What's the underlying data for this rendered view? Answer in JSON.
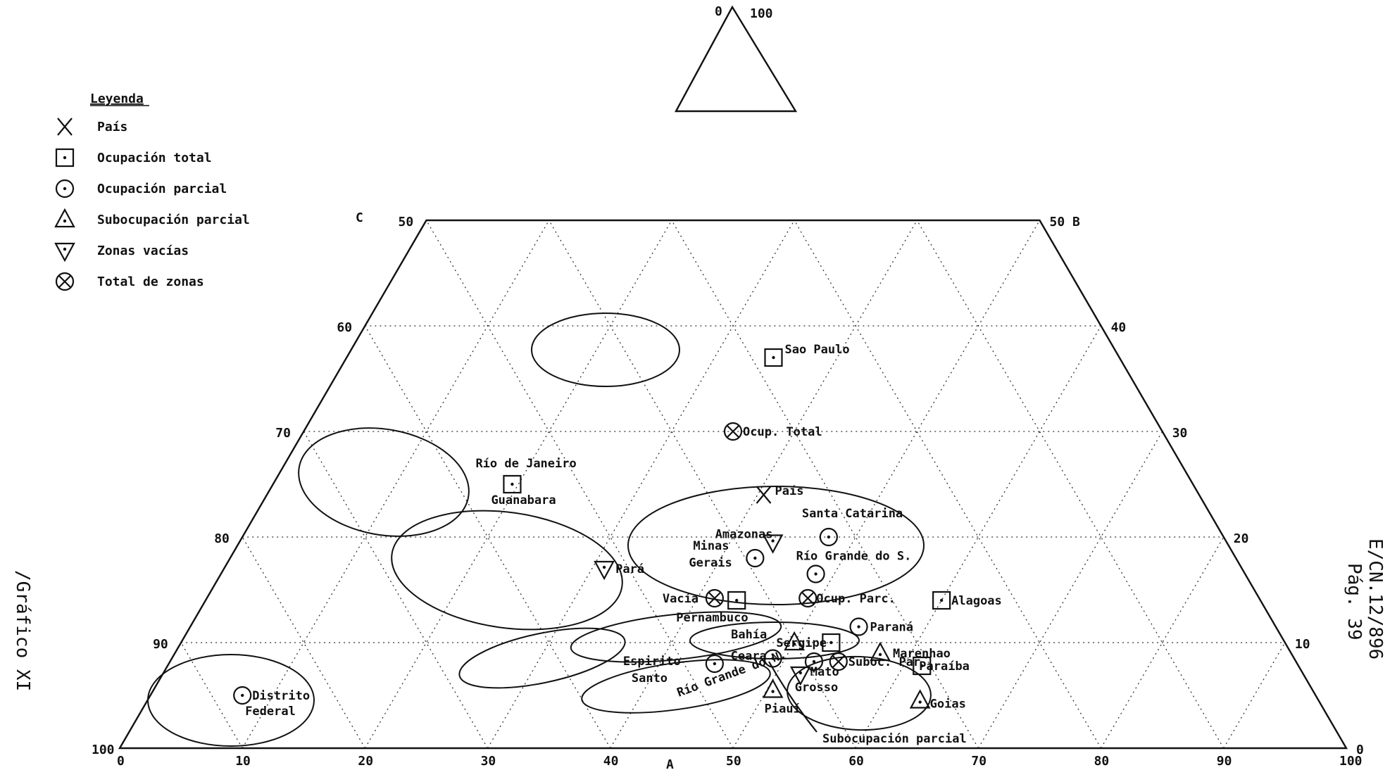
{
  "chart_data": {
    "type": "scatter",
    "variant": "ternary",
    "page_ref": "E/CN.12/896",
    "page_num": "Pág. 39",
    "figure_tag": "/Gráfico XI",
    "axes": {
      "A": {
        "label": "A",
        "ticks": [
          "0",
          "10",
          "20",
          "30",
          "40",
          "50",
          "60",
          "70",
          "80",
          "90",
          "100"
        ]
      },
      "B": {
        "label": "B",
        "ticks": [
          "0",
          "10",
          "20",
          "30",
          "40",
          "50 B"
        ]
      },
      "C": {
        "label": "C",
        "ticks": [
          "50",
          "60",
          "70",
          "80",
          "90",
          "100"
        ]
      },
      "inset": [
        "0",
        "100"
      ]
    },
    "legend": {
      "title": "Leyenda",
      "items": [
        {
          "symbol": "x-cross",
          "label": "País"
        },
        {
          "symbol": "square-dot",
          "label": "Ocupación total"
        },
        {
          "symbol": "circle-dot",
          "label": "Ocupación parcial"
        },
        {
          "symbol": "triangle-up-dot",
          "label": "Subocupación parcial"
        },
        {
          "symbol": "triangle-down-dot",
          "label": "Zonas vacías"
        },
        {
          "symbol": "circle-x",
          "label": "Total de zonas"
        }
      ]
    },
    "points": [
      {
        "label": "Sao Paulo",
        "symbol": "square-dot",
        "A": 34.8,
        "C": 63.0
      },
      {
        "label": "Ocup. Total",
        "symbol": "circle-x",
        "A": 35.0,
        "C": 70.0
      },
      {
        "label": "Río de Janeiro",
        "label2": "Guanabara",
        "symbol": "square-dot",
        "A": 19.5,
        "C": 75.0
      },
      {
        "label": "País",
        "symbol": "x-cross",
        "A": 40.5,
        "C": 76.0
      },
      {
        "label": "Santa Catarina",
        "symbol": "circle-dot",
        "A": 47.8,
        "C": 80.0
      },
      {
        "label": "Amazonas",
        "symbol": "triangle-down-dot",
        "A": 43.5,
        "C": 80.5
      },
      {
        "label": "Minas",
        "label2": "Gerais",
        "symbol": "circle-dot",
        "A": 42.8,
        "C": 82.0
      },
      {
        "label": "Pará",
        "symbol": "triangle-down-dot",
        "A": 31.0,
        "C": 83.0
      },
      {
        "label": "Río Grande do S.",
        "symbol": "circle-dot",
        "A": 48.5,
        "C": 83.5
      },
      {
        "label": "Vacía",
        "symbol": "circle-x",
        "A": 41.4,
        "C": 85.8
      },
      {
        "label": "Pernambuco",
        "symbol": "square-dot",
        "A": 43.3,
        "C": 86.0
      },
      {
        "label": "Ocup. Parc.",
        "symbol": "circle-x",
        "A": 49.0,
        "C": 85.8
      },
      {
        "label": "Alagoas",
        "symbol": "square-dot",
        "A": 60.0,
        "C": 86.0
      },
      {
        "label": "Paraná",
        "symbol": "circle-dot",
        "A": 54.5,
        "C": 88.5
      },
      {
        "label": "Bahía",
        "symbol": "triangle-up-dot",
        "A": 50.0,
        "C": 90.0
      },
      {
        "label": "Sergipe",
        "symbol": "square-dot",
        "A": 53.0,
        "C": 90.0
      },
      {
        "label": "Marenhao",
        "symbol": "triangle-up-dot",
        "A": 57.5,
        "C": 91.0
      },
      {
        "label": "Ceara",
        "symbol": "circle-dot",
        "A": 49.0,
        "C": 91.5
      },
      {
        "label": "Espirito",
        "label2": "Santo",
        "symbol": "circle-dot",
        "A": 44.5,
        "C": 92.0
      },
      {
        "label": "Río Grande do N.",
        "symbol": "circle-dot",
        "A": 52.5,
        "C": 91.8
      },
      {
        "label": "Suboc. Par",
        "symbol": "circle-x",
        "A": 54.5,
        "C": 91.8
      },
      {
        "label": "Paraíba",
        "symbol": "square-dot",
        "A": 61.5,
        "C": 92.2
      },
      {
        "label": "Mato",
        "label2": "Grosso",
        "symbol": "triangle-down-dot",
        "A": 52.0,
        "C": 93.0
      },
      {
        "label": "Piauí",
        "symbol": "triangle-up-dot",
        "A": 50.5,
        "C": 94.5
      },
      {
        "label": "Goias",
        "symbol": "triangle-up-dot",
        "A": 63.0,
        "C": 95.5
      },
      {
        "label": "Distrito",
        "label2": "Federal",
        "symbol": "circle-dot",
        "A": 7.5,
        "C": 95.0
      }
    ],
    "annotation": "Subocupación parcial"
  }
}
